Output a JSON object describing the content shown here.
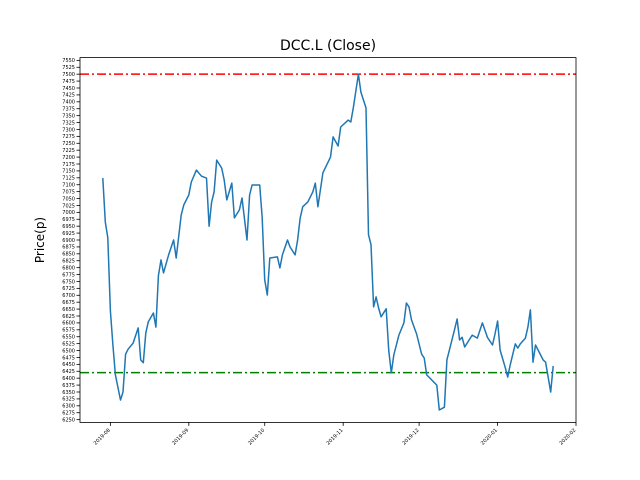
{
  "chart_data": {
    "type": "line",
    "title": "DCC.L (Close)",
    "y_label": "Price(p)",
    "x": [
      -3,
      -2,
      -1,
      0,
      1,
      2,
      4,
      5,
      6,
      7,
      9,
      11,
      12,
      13,
      14,
      15,
      17,
      18,
      19,
      20,
      21,
      23,
      25,
      26,
      28,
      29,
      31,
      32,
      34,
      36,
      38,
      39,
      40,
      41,
      42,
      44,
      45,
      46,
      48,
      49,
      51,
      52,
      54,
      55,
      56,
      59,
      60,
      61,
      62,
      63,
      66,
      67,
      68,
      70,
      71,
      73,
      74,
      75,
      76,
      78,
      80,
      81,
      82,
      84,
      87,
      88,
      90,
      91,
      94,
      95,
      96,
      98,
      99,
      101,
      102,
      103,
      104,
      105,
      106,
      107,
      109,
      110,
      111,
      112,
      114,
      116,
      117,
      118,
      119,
      121,
      123,
      124,
      125,
      129,
      130,
      132,
      133,
      136,
      137,
      138,
      139,
      140,
      143,
      145,
      147,
      149,
      151,
      152,
      153,
      154,
      156,
      157,
      158,
      160,
      161,
      162,
      164,
      165,
      166,
      167,
      168,
      171,
      172,
      174,
      175
    ],
    "series": [
      {
        "name": null,
        "color": "#1f77b4",
        "values": [
          7124,
          6965,
          6908,
          6643,
          6520,
          6412,
          6321,
          6350,
          6487,
          6505,
          6527,
          6582,
          6466,
          6456,
          6564,
          6604,
          6636,
          6585,
          6771,
          6828,
          6781,
          6846,
          6900,
          6835,
          6991,
          7027,
          7063,
          7110,
          7153,
          7131,
          7124,
          6950,
          7037,
          7074,
          7189,
          7160,
          7117,
          7045,
          7106,
          6980,
          7009,
          7052,
          6900,
          7063,
          7099,
          7099,
          6980,
          6756,
          6701,
          6835,
          6839,
          6799,
          6846,
          6900,
          6875,
          6846,
          6900,
          6980,
          7020,
          7038,
          7074,
          7106,
          7020,
          7143,
          7200,
          7273,
          7240,
          7309,
          7334,
          7327,
          7378,
          7500,
          7435,
          7378,
          6919,
          6883,
          6658,
          6694,
          6654,
          6622,
          6651,
          6502,
          6419,
          6484,
          6556,
          6600,
          6672,
          6658,
          6611,
          6560,
          6487,
          6473,
          6412,
          6375,
          6285,
          6295,
          6466,
          6575,
          6614,
          6538,
          6548,
          6513,
          6556,
          6545,
          6600,
          6548,
          6520,
          6560,
          6607,
          6502,
          6440,
          6404,
          6448,
          6524,
          6509,
          6524,
          6545,
          6585,
          6647,
          6458,
          6520,
          6466,
          6458,
          6350,
          6444
        ]
      }
    ],
    "hlines": [
      {
        "value": 7500,
        "color": "#ff0000"
      },
      {
        "value": 6420,
        "color": "#008000"
      }
    ],
    "xlim": [
      -12,
      184
    ],
    "xticks": [
      {
        "value": 0,
        "label": "2019-08"
      },
      {
        "value": 31,
        "label": "2019-09"
      },
      {
        "value": 61,
        "label": "2019-10"
      },
      {
        "value": 92,
        "label": "2019-11"
      },
      {
        "value": 122,
        "label": "2019-12"
      },
      {
        "value": 153,
        "label": "2020-01"
      },
      {
        "value": 184,
        "label": "2020-02"
      }
    ],
    "ylim": [
      6240,
      7560
    ],
    "yticks": [
      6250,
      6275,
      6300,
      6325,
      6350,
      6375,
      6400,
      6425,
      6450,
      6475,
      6500,
      6525,
      6550,
      6575,
      6600,
      6625,
      6650,
      6675,
      6700,
      6725,
      6750,
      6775,
      6800,
      6825,
      6850,
      6875,
      6900,
      6925,
      6950,
      6975,
      7000,
      7025,
      7050,
      7075,
      7100,
      7125,
      7150,
      7175,
      7200,
      7225,
      7250,
      7275,
      7300,
      7325,
      7350,
      7375,
      7400,
      7425,
      7450,
      7475,
      7500,
      7525,
      7550
    ]
  }
}
